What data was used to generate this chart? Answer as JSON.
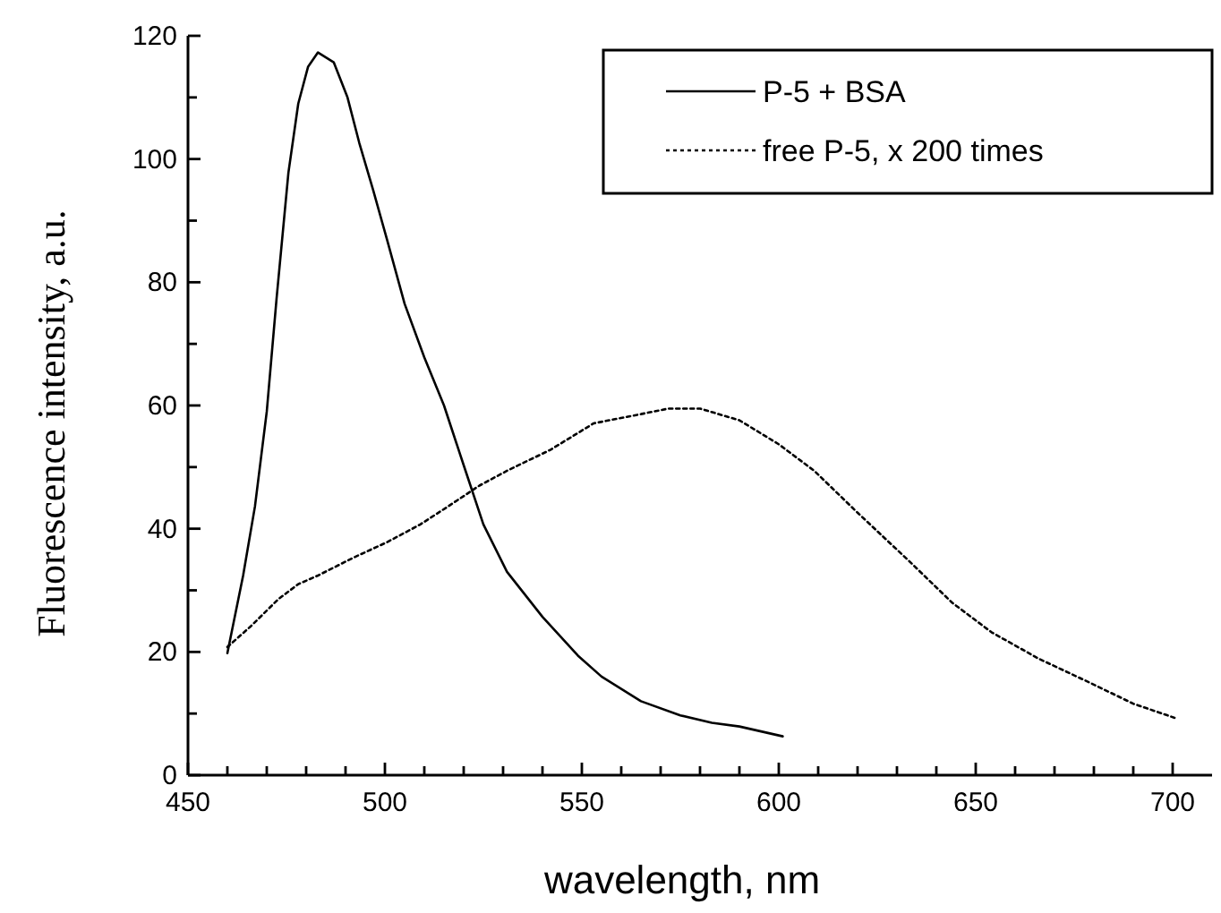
{
  "chart_data": {
    "type": "line",
    "xlabel": "wavelength, nm",
    "ylabel": "Fluorescence intensity, a.u.",
    "xlim": [
      450,
      710
    ],
    "ylim": [
      0,
      120
    ],
    "xticks": [
      450,
      {
        "value": 460,
        "label": null
      },
      {
        "value": 470,
        "label": null
      },
      {
        "value": 480,
        "label": null
      },
      {
        "value": 490,
        "label": null
      },
      500,
      {
        "value": 510,
        "label": null
      },
      {
        "value": 520,
        "label": null
      },
      {
        "value": 530,
        "label": null
      },
      {
        "value": 540,
        "label": null
      },
      550,
      {
        "value": 560,
        "label": null
      },
      {
        "value": 570,
        "label": null
      },
      {
        "value": 580,
        "label": null
      },
      {
        "value": 590,
        "label": null
      },
      600,
      {
        "value": 610,
        "label": null
      },
      {
        "value": 620,
        "label": null
      },
      {
        "value": 630,
        "label": null
      },
      {
        "value": 640,
        "label": null
      },
      650,
      {
        "value": 660,
        "label": null
      },
      {
        "value": 670,
        "label": null
      },
      {
        "value": 680,
        "label": null
      },
      {
        "value": 690,
        "label": null
      },
      700
    ],
    "yticks": [
      0,
      {
        "value": 10,
        "label": null
      },
      20,
      {
        "value": 30,
        "label": null
      },
      40,
      {
        "value": 50,
        "label": null
      },
      60,
      {
        "value": 70,
        "label": null
      },
      80,
      {
        "value": 90,
        "label": null
      },
      100,
      {
        "value": 110,
        "label": null
      },
      120
    ],
    "legend": "top right",
    "grid": false,
    "series": [
      {
        "name": "P-5 + BSA",
        "color": "#000000",
        "line_style": "solid",
        "x": [
          460,
          464,
          467,
          470,
          472.5,
          475.5,
          478,
          480.5,
          483,
          487,
          490.5,
          493.5,
          497,
          500.5,
          505,
          510,
          515,
          520,
          525,
          531,
          540,
          549,
          555,
          565,
          575,
          583,
          590,
          601
        ],
        "values": [
          19.8,
          32.4,
          43.6,
          59,
          77.4,
          97.8,
          109,
          115,
          117.3,
          115.7,
          110,
          102.6,
          95,
          87,
          76.5,
          67.8,
          60,
          50.3,
          40.7,
          33,
          25.7,
          19.4,
          16,
          12,
          9.7,
          8.5,
          7.9,
          6.3
        ]
      },
      {
        "name": "free P-5, x 200 times",
        "color": "#000000",
        "line_style": "dotted",
        "x": [
          460,
          466,
          473,
          478,
          483,
          492,
          500.5,
          509,
          516,
          524,
          531,
          542,
          553,
          565,
          572,
          580,
          590,
          600,
          609,
          620,
          633,
          644,
          654,
          666,
          679,
          690,
          701
        ],
        "values": [
          20.8,
          24.2,
          28.6,
          31,
          32.4,
          35.3,
          37.8,
          40.7,
          43.6,
          47,
          49.4,
          52.8,
          57.1,
          58.6,
          59.5,
          59.5,
          57.6,
          53.7,
          49.4,
          42.6,
          34.8,
          28,
          23.2,
          18.9,
          15,
          11.6,
          9.2
        ]
      }
    ]
  }
}
